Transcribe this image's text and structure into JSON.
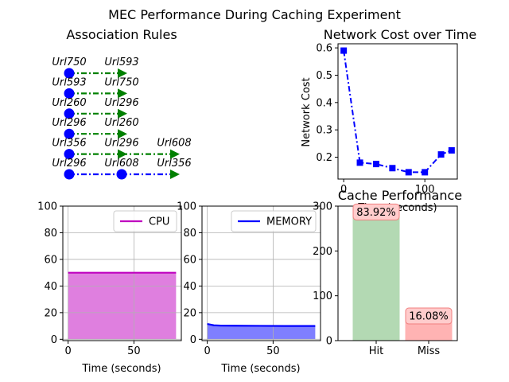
{
  "figure_title": "MEC Performance During Caching Experiment",
  "colors": {
    "green": "#008000",
    "blue": "#0000ff",
    "magenta": "#bf00bf",
    "hit": "#b3d9b3",
    "miss": "#ffb3b3",
    "label_border": "#f08080",
    "label_fill": "#ffcccc",
    "grid": "#b0b0b0"
  },
  "chart_data": [
    {
      "id": "association_rules",
      "type": "diagram",
      "title": "Association Rules",
      "rules": [
        {
          "items": [
            "Url750",
            "Url593"
          ],
          "color": "green"
        },
        {
          "items": [
            "Url593",
            "Url750"
          ],
          "color": "green"
        },
        {
          "items": [
            "Url260",
            "Url296"
          ],
          "color": "green"
        },
        {
          "items": [
            "Url296",
            "Url260"
          ],
          "color": "green"
        },
        {
          "items": [
            "Url356",
            "Url296",
            "Url608"
          ],
          "color": "green"
        },
        {
          "items": [
            "Url296",
            "Url608",
            "Url356"
          ],
          "color": "blue"
        }
      ]
    },
    {
      "id": "network_cost",
      "type": "line",
      "title": "Network Cost over Time",
      "xlabel": "Time (seconds)",
      "ylabel": "Network Cost",
      "x": [
        0,
        20,
        40,
        60,
        80,
        100,
        120,
        133
      ],
      "y": [
        0.59,
        0.18,
        0.175,
        0.16,
        0.145,
        0.145,
        0.21,
        0.225
      ],
      "xlim": [
        -7,
        140
      ],
      "ylim": [
        0.12,
        0.615
      ],
      "xticks": [
        0,
        100
      ],
      "yticks": [
        0.2,
        0.3,
        0.4,
        0.5,
        0.6
      ],
      "grid": false
    },
    {
      "id": "cpu",
      "type": "area",
      "xlabel": "Time (seconds)",
      "series": [
        {
          "name": "CPU",
          "x": [
            0,
            82
          ],
          "y": [
            50,
            50
          ]
        }
      ],
      "xlim": [
        -4,
        86
      ],
      "ylim": [
        -1,
        100
      ],
      "xticks": [
        0,
        50
      ],
      "yticks": [
        0,
        20,
        40,
        60,
        80,
        100
      ],
      "grid": true,
      "legend": "top-right"
    },
    {
      "id": "memory",
      "type": "area",
      "xlabel": "Time (seconds)",
      "series": [
        {
          "name": "MEMORY",
          "x": [
            0,
            5,
            10,
            20,
            40,
            60,
            82
          ],
          "y": [
            11.5,
            10.5,
            10.3,
            10.2,
            10.1,
            10.0,
            10.0
          ]
        }
      ],
      "xlim": [
        -4,
        86
      ],
      "ylim": [
        -1,
        100
      ],
      "xticks": [
        0,
        50
      ],
      "yticks": [
        0,
        20,
        40,
        60,
        80,
        100
      ],
      "grid": true,
      "legend": "top-right"
    },
    {
      "id": "cache_performance",
      "type": "bar",
      "title": "Cache Performance",
      "categories": [
        "Hit",
        "Miss"
      ],
      "values": [
        287,
        55
      ],
      "labels": [
        "83.92%",
        "16.08%"
      ],
      "ylim": [
        0,
        300
      ],
      "yticks": [
        0,
        100,
        200,
        300
      ]
    }
  ]
}
